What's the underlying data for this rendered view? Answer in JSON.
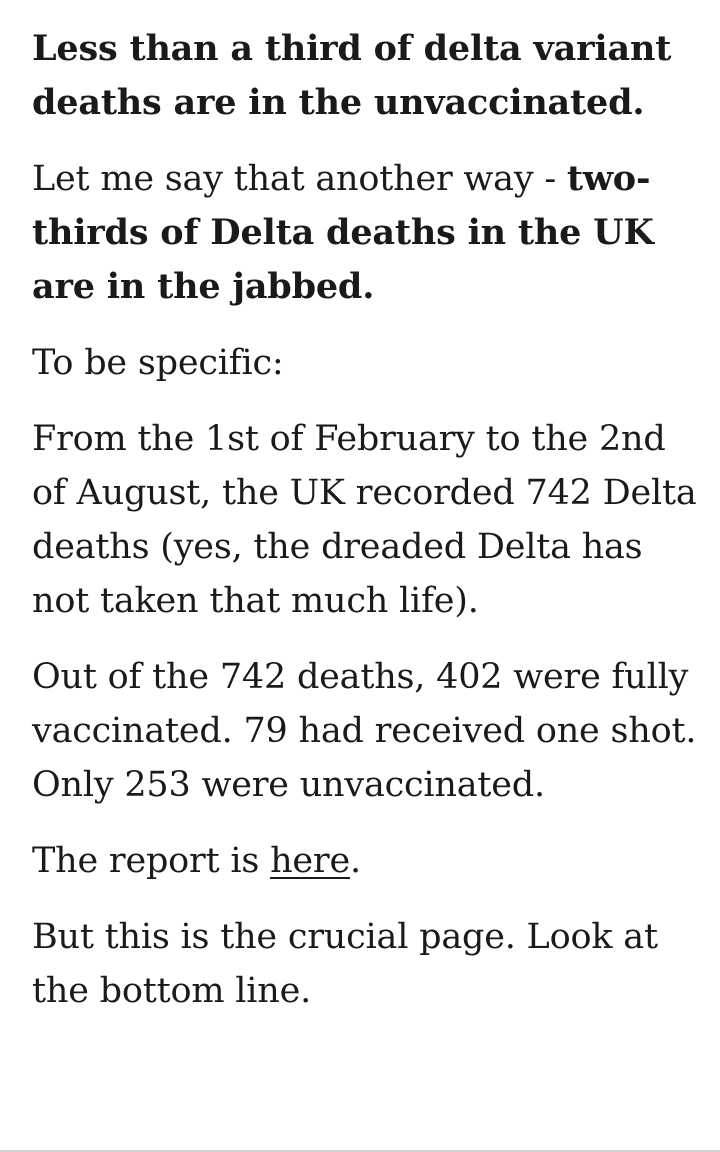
{
  "paragraphs": {
    "p1": "Less than a third of delta variant deaths are in the unvaccinated.",
    "p2_lead": "Let me say that another way - ",
    "p2_bold": "two-thirds of Delta deaths in the UK are in the jabbed.",
    "p3": "To be specific:",
    "p4": "From the 1st of February to the 2nd of August, the UK recorded 742 Delta deaths (yes, the dreaded Delta has not taken that much life).",
    "p5": "Out of the 742 deaths, 402 were fully vaccinated. 79 had received one shot. Only 253 were unvaccinated.",
    "p6_lead": "The report is ",
    "p6_link": "here",
    "p6_tail": ".",
    "p7": "But this is the crucial page. Look at the bottom line."
  }
}
